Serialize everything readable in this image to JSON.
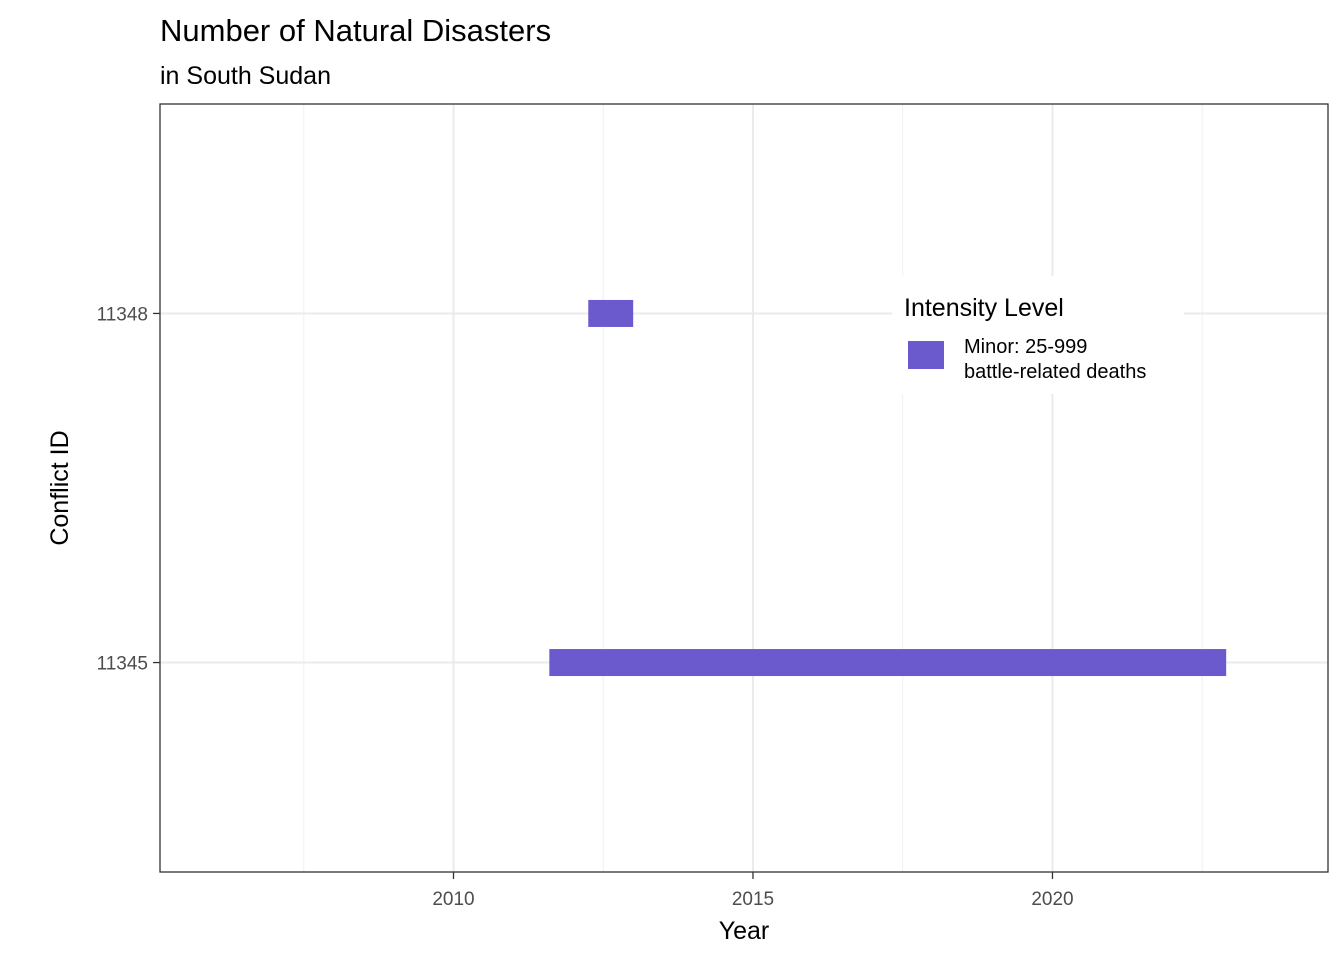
{
  "chart_data": {
    "type": "bar",
    "orientation": "horizontal-range",
    "title": "Number of Natural Disasters",
    "subtitle": "in South Sudan",
    "xlabel": "Year",
    "ylabel": "Conflict ID",
    "xlim": [
      2005.1,
      2024.6
    ],
    "x_ticks": [
      2010,
      2015,
      2020
    ],
    "x_minor_ticks": [
      2007.5,
      2012.5,
      2017.5,
      2022.5
    ],
    "categories": [
      "11345",
      "11348"
    ],
    "grid": true,
    "legend": {
      "title": "Intensity Level",
      "placement": "top-right",
      "entries": [
        {
          "label_line1": "Minor: 25-999",
          "label_line2": "battle-related deaths",
          "color": "#6A5ACD"
        }
      ]
    },
    "series": [
      {
        "name": "Minor: 25-999 battle-related deaths",
        "color": "#6A5ACD",
        "segments": [
          {
            "category": "11348",
            "start": 2012.25,
            "end": 2013.0
          },
          {
            "category": "11345",
            "start": 2011.6,
            "end": 2022.9
          }
        ]
      }
    ]
  }
}
